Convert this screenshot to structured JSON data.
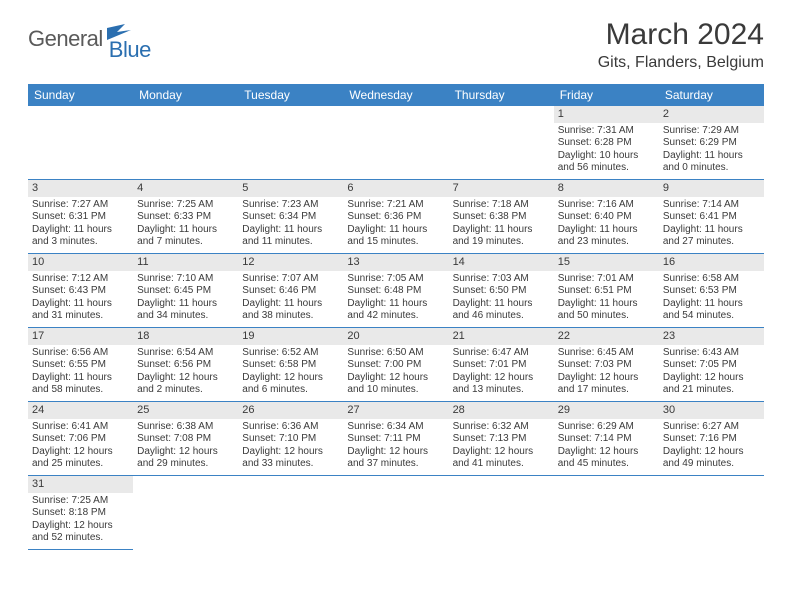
{
  "logo": {
    "general": "General",
    "blue": "Blue"
  },
  "title": "March 2024",
  "location": "Gits, Flanders, Belgium",
  "colors": {
    "header_bg": "#3b82c4",
    "header_text": "#ffffff",
    "daynum_bg": "#e9e9e9",
    "rule": "#3b82c4",
    "text": "#3a3a3a",
    "logo_gray": "#5a5a5a",
    "logo_blue": "#2b6fb0"
  },
  "day_headers": [
    "Sunday",
    "Monday",
    "Tuesday",
    "Wednesday",
    "Thursday",
    "Friday",
    "Saturday"
  ],
  "days": [
    {
      "n": "1",
      "sunrise": "7:31 AM",
      "sunset": "6:28 PM",
      "daylight": "10 hours and 56 minutes."
    },
    {
      "n": "2",
      "sunrise": "7:29 AM",
      "sunset": "6:29 PM",
      "daylight": "11 hours and 0 minutes."
    },
    {
      "n": "3",
      "sunrise": "7:27 AM",
      "sunset": "6:31 PM",
      "daylight": "11 hours and 3 minutes."
    },
    {
      "n": "4",
      "sunrise": "7:25 AM",
      "sunset": "6:33 PM",
      "daylight": "11 hours and 7 minutes."
    },
    {
      "n": "5",
      "sunrise": "7:23 AM",
      "sunset": "6:34 PM",
      "daylight": "11 hours and 11 minutes."
    },
    {
      "n": "6",
      "sunrise": "7:21 AM",
      "sunset": "6:36 PM",
      "daylight": "11 hours and 15 minutes."
    },
    {
      "n": "7",
      "sunrise": "7:18 AM",
      "sunset": "6:38 PM",
      "daylight": "11 hours and 19 minutes."
    },
    {
      "n": "8",
      "sunrise": "7:16 AM",
      "sunset": "6:40 PM",
      "daylight": "11 hours and 23 minutes."
    },
    {
      "n": "9",
      "sunrise": "7:14 AM",
      "sunset": "6:41 PM",
      "daylight": "11 hours and 27 minutes."
    },
    {
      "n": "10",
      "sunrise": "7:12 AM",
      "sunset": "6:43 PM",
      "daylight": "11 hours and 31 minutes."
    },
    {
      "n": "11",
      "sunrise": "7:10 AM",
      "sunset": "6:45 PM",
      "daylight": "11 hours and 34 minutes."
    },
    {
      "n": "12",
      "sunrise": "7:07 AM",
      "sunset": "6:46 PM",
      "daylight": "11 hours and 38 minutes."
    },
    {
      "n": "13",
      "sunrise": "7:05 AM",
      "sunset": "6:48 PM",
      "daylight": "11 hours and 42 minutes."
    },
    {
      "n": "14",
      "sunrise": "7:03 AM",
      "sunset": "6:50 PM",
      "daylight": "11 hours and 46 minutes."
    },
    {
      "n": "15",
      "sunrise": "7:01 AM",
      "sunset": "6:51 PM",
      "daylight": "11 hours and 50 minutes."
    },
    {
      "n": "16",
      "sunrise": "6:58 AM",
      "sunset": "6:53 PM",
      "daylight": "11 hours and 54 minutes."
    },
    {
      "n": "17",
      "sunrise": "6:56 AM",
      "sunset": "6:55 PM",
      "daylight": "11 hours and 58 minutes."
    },
    {
      "n": "18",
      "sunrise": "6:54 AM",
      "sunset": "6:56 PM",
      "daylight": "12 hours and 2 minutes."
    },
    {
      "n": "19",
      "sunrise": "6:52 AM",
      "sunset": "6:58 PM",
      "daylight": "12 hours and 6 minutes."
    },
    {
      "n": "20",
      "sunrise": "6:50 AM",
      "sunset": "7:00 PM",
      "daylight": "12 hours and 10 minutes."
    },
    {
      "n": "21",
      "sunrise": "6:47 AM",
      "sunset": "7:01 PM",
      "daylight": "12 hours and 13 minutes."
    },
    {
      "n": "22",
      "sunrise": "6:45 AM",
      "sunset": "7:03 PM",
      "daylight": "12 hours and 17 minutes."
    },
    {
      "n": "23",
      "sunrise": "6:43 AM",
      "sunset": "7:05 PM",
      "daylight": "12 hours and 21 minutes."
    },
    {
      "n": "24",
      "sunrise": "6:41 AM",
      "sunset": "7:06 PM",
      "daylight": "12 hours and 25 minutes."
    },
    {
      "n": "25",
      "sunrise": "6:38 AM",
      "sunset": "7:08 PM",
      "daylight": "12 hours and 29 minutes."
    },
    {
      "n": "26",
      "sunrise": "6:36 AM",
      "sunset": "7:10 PM",
      "daylight": "12 hours and 33 minutes."
    },
    {
      "n": "27",
      "sunrise": "6:34 AM",
      "sunset": "7:11 PM",
      "daylight": "12 hours and 37 minutes."
    },
    {
      "n": "28",
      "sunrise": "6:32 AM",
      "sunset": "7:13 PM",
      "daylight": "12 hours and 41 minutes."
    },
    {
      "n": "29",
      "sunrise": "6:29 AM",
      "sunset": "7:14 PM",
      "daylight": "12 hours and 45 minutes."
    },
    {
      "n": "30",
      "sunrise": "6:27 AM",
      "sunset": "7:16 PM",
      "daylight": "12 hours and 49 minutes."
    },
    {
      "n": "31",
      "sunrise": "7:25 AM",
      "sunset": "8:18 PM",
      "daylight": "12 hours and 52 minutes."
    }
  ],
  "labels": {
    "sunrise": "Sunrise:",
    "sunset": "Sunset:",
    "daylight": "Daylight:"
  },
  "layout": {
    "leading_blanks": 5,
    "trailing_blanks": 6
  }
}
